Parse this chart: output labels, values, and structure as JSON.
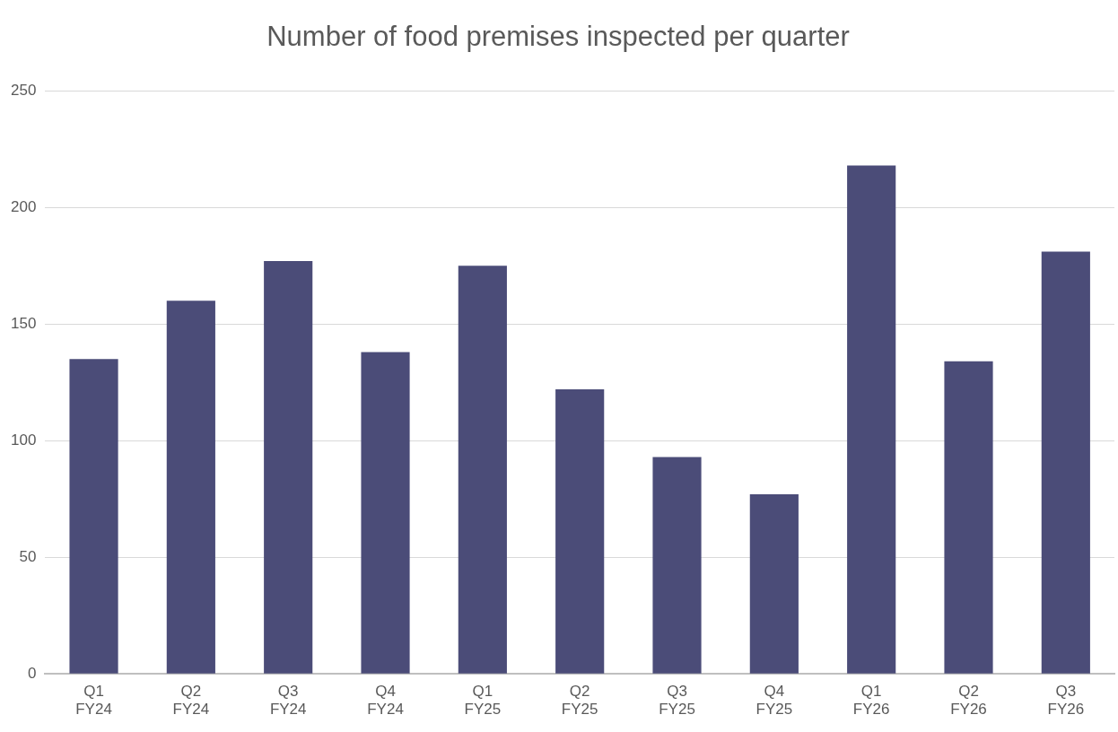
{
  "chart_data": {
    "type": "bar",
    "title": "Number of food premises inspected per quarter",
    "categories": [
      "Q1 FY24",
      "Q2 FY24",
      "Q3 FY24",
      "Q4 FY24",
      "Q1 FY25",
      "Q2 FY25",
      "Q3 FY25",
      "Q4 FY25",
      "Q1 FY26",
      "Q2 FY26",
      "Q3 FY26"
    ],
    "values": [
      135,
      160,
      177,
      138,
      175,
      122,
      93,
      77,
      218,
      134,
      181
    ],
    "color": "#4b4c78",
    "ylim": [
      0,
      250
    ],
    "yticks": [
      0,
      50,
      100,
      150,
      200,
      250
    ],
    "grid": "y",
    "legend": false
  }
}
